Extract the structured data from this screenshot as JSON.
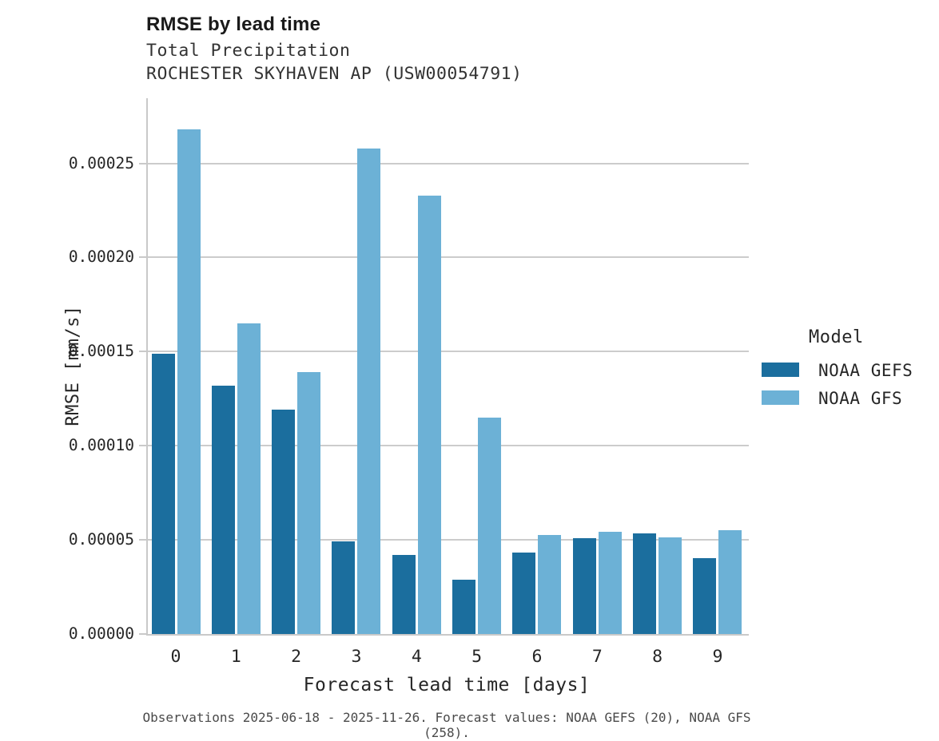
{
  "header": {
    "title": "RMSE by lead time",
    "subtitle1": "Total Precipitation",
    "subtitle2": "ROCHESTER SKYHAVEN AP (USW00054791)"
  },
  "chart_data": {
    "type": "bar",
    "title": "RMSE by lead time",
    "subtitle": [
      "Total Precipitation",
      "ROCHESTER SKYHAVEN AP (USW00054791)"
    ],
    "categories": [
      "0",
      "1",
      "2",
      "3",
      "4",
      "5",
      "6",
      "7",
      "8",
      "9"
    ],
    "series": [
      {
        "name": "NOAA GEFS",
        "color": "#1b6e9e",
        "values": [
          0.000149,
          0.000132,
          0.000119,
          4.93e-05,
          4.18e-05,
          2.88e-05,
          4.34e-05,
          5.07e-05,
          5.33e-05,
          4.02e-05
        ]
      },
      {
        "name": "NOAA GFS",
        "color": "#6cb1d6",
        "values": [
          0.000268,
          0.000165,
          0.000139,
          0.000258,
          0.000233,
          0.000115,
          5.28e-05,
          5.45e-05,
          5.14e-05,
          5.53e-05
        ]
      }
    ],
    "xlabel": "Forecast lead time [days]",
    "ylabel": "RMSE [mm/s]",
    "ylim": [
      0,
      0.0002846
    ],
    "yticks": [
      0.0,
      5e-05,
      0.0001,
      0.00015,
      0.0002,
      0.00025
    ],
    "ytick_labels": [
      "0.00000",
      "0.00005",
      "0.00010",
      "0.00015",
      "0.00020",
      "0.00025"
    ],
    "grid": "horizontal-gridlines-on-white",
    "legend_title": "Model",
    "legend_position": "right"
  },
  "legend": {
    "title": "Model",
    "items": [
      {
        "label": "NOAA GEFS",
        "color": "#1b6e9e"
      },
      {
        "label": "NOAA GFS",
        "color": "#6cb1d6"
      }
    ]
  },
  "caption": "Observations 2025-06-18 - 2025-11-26. Forecast values: NOAA GEFS (20), NOAA GFS (258)."
}
